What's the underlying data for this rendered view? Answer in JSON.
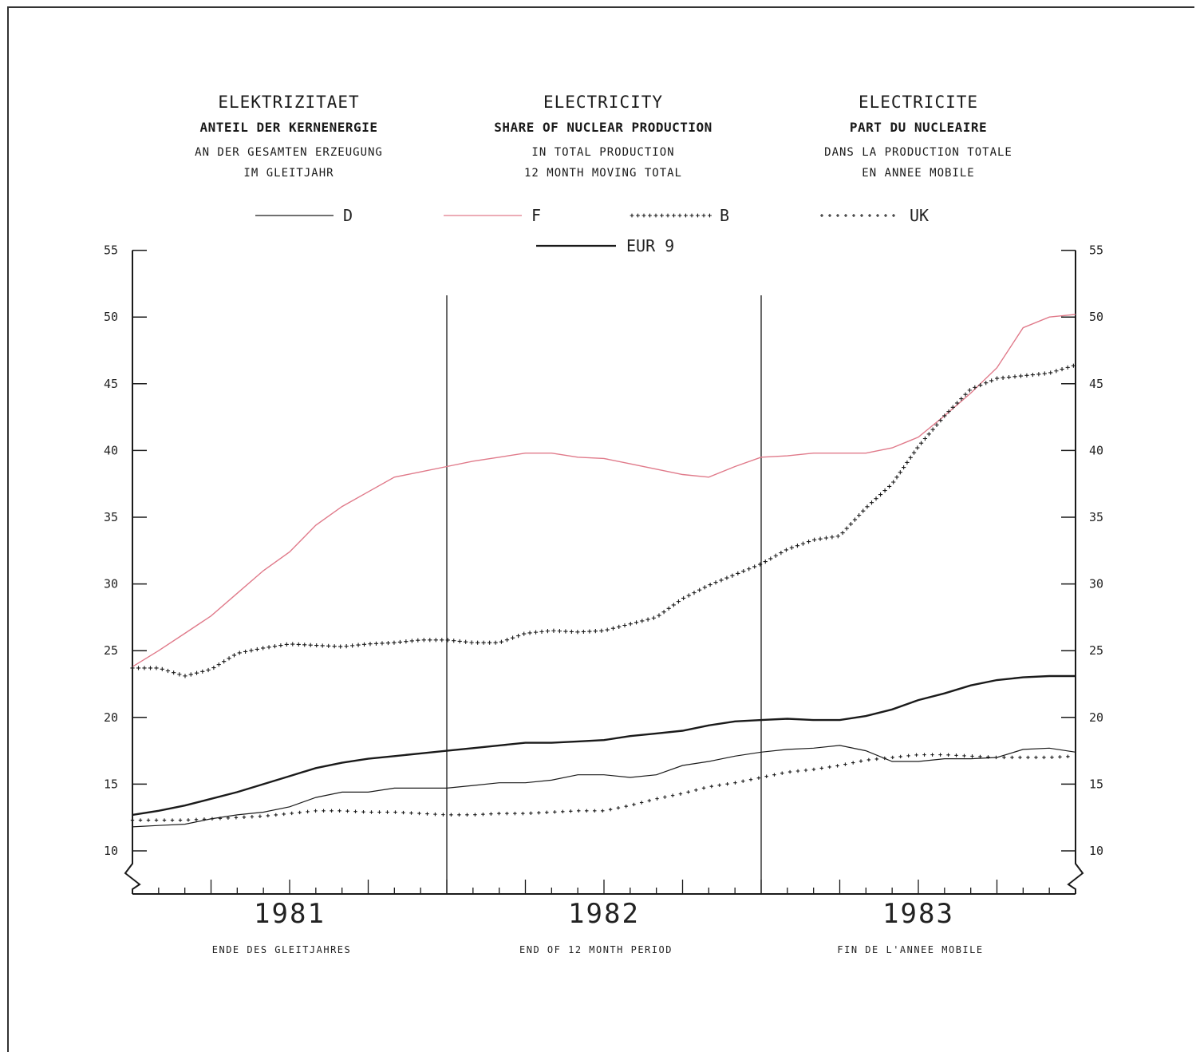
{
  "headers": [
    {
      "title": "ELEKTRIZITAET",
      "subtitle": "ANTEIL DER KERNENERGIE",
      "line1": "AN DER GESAMTEN ERZEUGUNG",
      "line2": "IM GLEITJAHR"
    },
    {
      "title": "ELECTRICITY",
      "subtitle": "SHARE OF NUCLEAR PRODUCTION",
      "line1": "IN TOTAL PRODUCTION",
      "line2": "12 MONTH MOVING TOTAL"
    },
    {
      "title": "ELECTRICITE",
      "subtitle": "PART DU NUCLEAIRE",
      "line1": "DANS LA PRODUCTION TOTALE",
      "line2": "EN ANNEE MOBILE"
    }
  ],
  "colors": {
    "F": "#e07a8a",
    "ink": "#1a1a1a"
  },
  "chart_data": {
    "type": "line",
    "x_unit": "month",
    "x": [
      1,
      2,
      3,
      4,
      5,
      6,
      7,
      8,
      9,
      10,
      11,
      12,
      13,
      14,
      15,
      16,
      17,
      18,
      19,
      20,
      21,
      22,
      23,
      24,
      25,
      26,
      27,
      28,
      29,
      30,
      31,
      32,
      33,
      34,
      35,
      36,
      37
    ],
    "years": [
      "1981",
      "1982",
      "1983"
    ],
    "footer": [
      "ENDE DES GLEITJAHRES",
      "END OF 12 MONTH PERIOD",
      "FIN DE L'ANNEE MOBILE"
    ],
    "yticks": [
      10,
      15,
      20,
      25,
      30,
      35,
      40,
      45,
      50,
      55
    ],
    "ylim": [
      7,
      55
    ],
    "series": [
      {
        "name": "D",
        "style": "thin",
        "values": [
          11.8,
          11.9,
          12.0,
          12.4,
          12.7,
          12.9,
          13.3,
          14.0,
          14.4,
          14.4,
          14.7,
          14.7,
          14.7,
          14.9,
          15.1,
          15.1,
          15.3,
          15.7,
          15.7,
          15.5,
          15.7,
          16.4,
          16.7,
          17.1,
          17.4,
          17.6,
          17.7,
          17.9,
          17.5,
          16.7,
          16.7,
          16.9,
          16.9,
          17.0,
          17.6,
          17.7,
          17.4
        ]
      },
      {
        "name": "F",
        "style": "pink",
        "values": [
          23.8,
          25.0,
          26.3,
          27.6,
          29.3,
          31.0,
          32.4,
          34.4,
          35.8,
          36.9,
          38.0,
          38.4,
          38.8,
          39.2,
          39.5,
          39.8,
          39.8,
          39.5,
          39.4,
          39.0,
          38.6,
          38.2,
          38.0,
          38.8,
          39.5,
          39.6,
          39.8,
          39.8,
          39.8,
          40.2,
          41.0,
          42.6,
          44.3,
          46.2,
          49.2,
          50.0,
          50.2
        ]
      },
      {
        "name": "B",
        "style": "plus",
        "values": [
          23.7,
          23.7,
          23.1,
          23.6,
          24.8,
          25.2,
          25.5,
          25.4,
          25.3,
          25.5,
          25.6,
          25.8,
          25.8,
          25.6,
          25.6,
          26.3,
          26.5,
          26.4,
          26.5,
          27.0,
          27.5,
          28.9,
          29.9,
          30.7,
          31.5,
          32.6,
          33.3,
          33.6,
          35.7,
          37.5,
          40.3,
          42.6,
          44.6,
          45.4,
          45.6,
          45.8,
          46.4
        ]
      },
      {
        "name": "UK",
        "style": "dots",
        "values": [
          12.3,
          12.3,
          12.3,
          12.4,
          12.5,
          12.6,
          12.8,
          13.0,
          13.0,
          12.9,
          12.9,
          12.8,
          12.7,
          12.7,
          12.8,
          12.8,
          12.9,
          13.0,
          13.0,
          13.4,
          13.9,
          14.3,
          14.8,
          15.1,
          15.5,
          15.9,
          16.1,
          16.4,
          16.8,
          17.0,
          17.2,
          17.2,
          17.1,
          17.0,
          17.0,
          17.0,
          17.1
        ]
      },
      {
        "name": "EUR 9",
        "style": "thick",
        "values": [
          12.7,
          13.0,
          13.4,
          13.9,
          14.4,
          15.0,
          15.6,
          16.2,
          16.6,
          16.9,
          17.1,
          17.3,
          17.5,
          17.7,
          17.9,
          18.1,
          18.1,
          18.2,
          18.3,
          18.6,
          18.8,
          19.0,
          19.4,
          19.7,
          19.8,
          19.9,
          19.8,
          19.8,
          20.1,
          20.6,
          21.3,
          21.8,
          22.4,
          22.8,
          23.0,
          23.1,
          23.1
        ]
      }
    ]
  }
}
